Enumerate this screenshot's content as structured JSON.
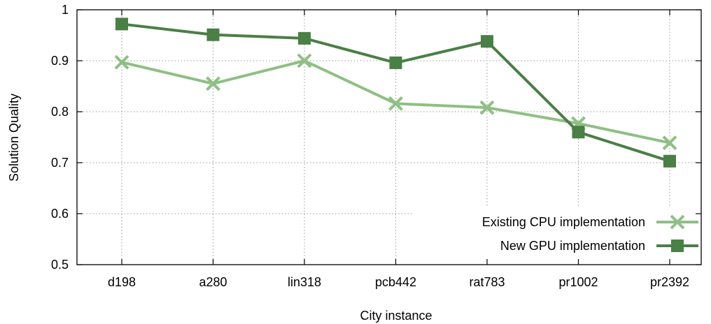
{
  "chart_data": {
    "type": "line",
    "xlabel": "City instance",
    "ylabel": "Solution Quality",
    "categories": [
      "d198",
      "a280",
      "lin318",
      "pcb442",
      "rat783",
      "pr1002",
      "pr2392"
    ],
    "ylim": [
      0.5,
      1
    ],
    "yticks": [
      "0.5",
      "0.6",
      "0.7",
      "0.8",
      "0.9",
      "1"
    ],
    "grid": true,
    "legend_position": "bottom-right",
    "series": [
      {
        "name": "Existing CPU implementation",
        "values": [
          0.897,
          0.855,
          0.9,
          0.816,
          0.808,
          0.777,
          0.739
        ],
        "color": "#8fbf84",
        "marker": "x"
      },
      {
        "name": "New GPU implementation",
        "values": [
          0.972,
          0.951,
          0.944,
          0.896,
          0.938,
          0.76,
          0.703
        ],
        "color": "#4a7f45",
        "marker": "square"
      }
    ]
  }
}
